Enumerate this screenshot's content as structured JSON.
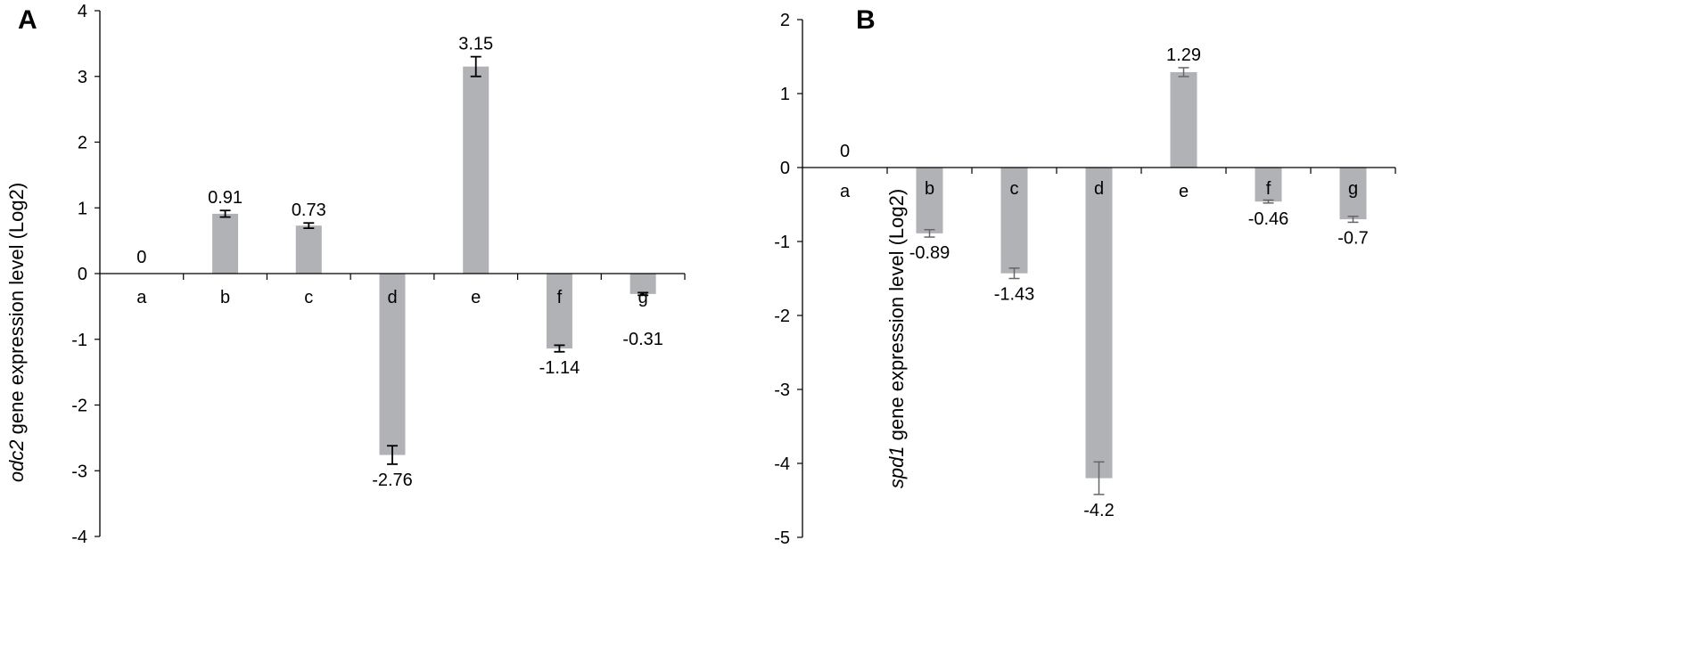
{
  "chart_data": [
    {
      "panel": "A",
      "type": "bar",
      "ylabel_gene": "odc2",
      "ylabel_rest": " gene expression level (Log2)",
      "categories": [
        "a",
        "b",
        "c",
        "d",
        "e",
        "f",
        "g"
      ],
      "values": [
        0,
        0.91,
        0.73,
        -2.76,
        3.15,
        -1.14,
        -0.31
      ],
      "value_labels": [
        "0",
        "0.91",
        "0.73",
        "-2.76",
        "3.15",
        "-1.14",
        "-0.31"
      ],
      "errors": [
        0,
        0.05,
        0.04,
        0.14,
        0.15,
        0.05,
        0.02
      ],
      "ylim": [
        -4,
        4
      ],
      "yticks": [
        4,
        3,
        2,
        1,
        0,
        -1,
        -2,
        -3,
        -4
      ],
      "grid": false
    },
    {
      "panel": "B",
      "type": "bar",
      "ylabel_gene": "spd1",
      "ylabel_rest": " gene expression level (Log2)",
      "categories": [
        "a",
        "b",
        "c",
        "d",
        "e",
        "f",
        "g"
      ],
      "values": [
        0,
        -0.89,
        -1.43,
        -4.2,
        1.29,
        -0.46,
        -0.7
      ],
      "value_labels": [
        "0",
        "-0.89",
        "-1.43",
        "-4.2",
        "1.29",
        "-0.46",
        "-0.7"
      ],
      "errors": [
        0,
        0.05,
        0.07,
        0.22,
        0.06,
        0.02,
        0.04
      ],
      "ylim": [
        -5,
        2
      ],
      "yticks": [
        2,
        1,
        0,
        -1,
        -2,
        -3,
        -4,
        -5
      ],
      "grid": false
    }
  ]
}
